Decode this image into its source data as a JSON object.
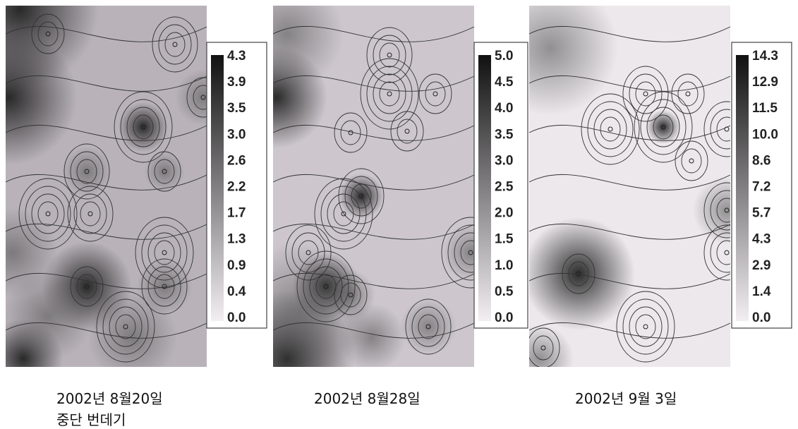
{
  "panels": [
    {
      "colorbar": {
        "labels": [
          "4.3",
          "3.9",
          "3.5",
          "3.0",
          "2.6",
          "2.2",
          "1.7",
          "1.3",
          "0.9",
          "0.4",
          "0.0"
        ]
      },
      "caption": [
        "2002년 8월20일",
        "중단 번데기"
      ]
    },
    {
      "colorbar": {
        "labels": [
          "5.0",
          "4.5",
          "4.0",
          "3.5",
          "3.0",
          "2.5",
          "2.0",
          "1.5",
          "1.0",
          "0.5",
          "0.0"
        ]
      },
      "caption": [
        "2002년 8월28일"
      ]
    },
    {
      "colorbar": {
        "labels": [
          "14.3",
          "12.9",
          "11.5",
          "10.0",
          "8.6",
          "7.2",
          "5.7",
          "4.3",
          "2.9",
          "1.4",
          "0.0"
        ]
      },
      "caption": [
        "2002년 9월 3일"
      ]
    }
  ]
}
